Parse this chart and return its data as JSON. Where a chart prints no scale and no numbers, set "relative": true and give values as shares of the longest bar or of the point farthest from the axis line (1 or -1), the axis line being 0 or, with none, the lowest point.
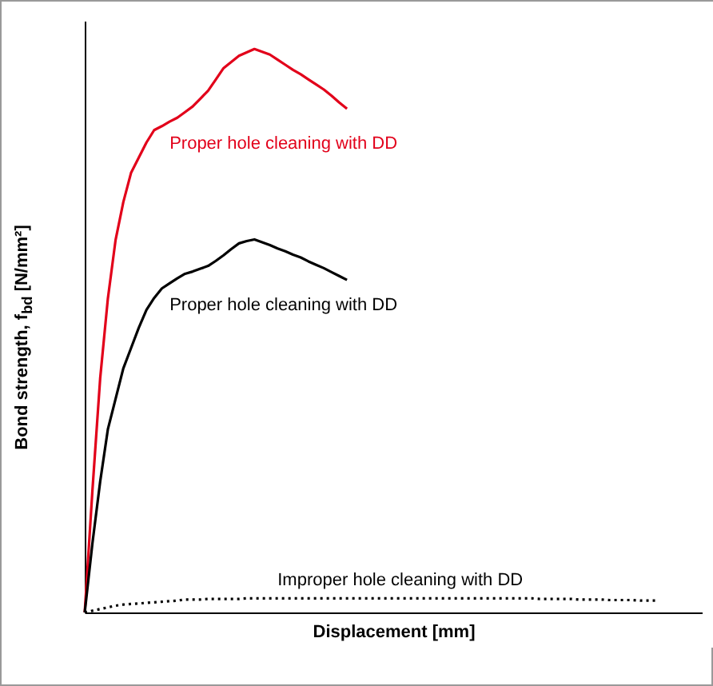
{
  "chart_data": {
    "type": "line",
    "relative": true,
    "xlabel": "Displacement [mm]",
    "ylabel": "Bond strength, f$_{bd}$ [N/mm²]",
    "categories": [
      null,
      null,
      null,
      null,
      null,
      null,
      null,
      null,
      null,
      null,
      null,
      null,
      null,
      null,
      null,
      null,
      null,
      null,
      null,
      null,
      null,
      null,
      null,
      null,
      null,
      null,
      null,
      null,
      null,
      null,
      null,
      null,
      null,
      null,
      null,
      null,
      null,
      null,
      null,
      null,
      null,
      null,
      null,
      null,
      null,
      null,
      null,
      null,
      null,
      null,
      null,
      null,
      null,
      null,
      null,
      null,
      null,
      null,
      null,
      null,
      null,
      null,
      null,
      null,
      null,
      null,
      null,
      null,
      null,
      null,
      null,
      null,
      null,
      null,
      null,
      null,
      null,
      null,
      null,
      null,
      null
    ],
    "series": [
      {
        "name": "Proper hole cleaning with DD",
        "color": "#e2001a",
        "values": [
          0,
          0.217,
          0.415,
          0.557,
          0.661,
          0.728,
          0.78,
          0.807,
          0.834,
          0.856,
          0.863,
          0.871,
          0.878,
          0.888,
          0.898,
          0.912,
          0.926,
          0.946,
          0.966,
          0.977,
          0.988,
          0.994,
          1,
          0.995,
          0.99,
          0.981,
          0.972,
          0.963,
          0.955,
          0.946,
          0.937,
          0.928,
          0.917,
          0.905,
          0.894,
          null,
          null,
          null,
          null,
          null,
          null,
          null,
          null,
          null,
          null,
          null,
          null,
          null,
          null,
          null,
          null,
          null,
          null,
          null,
          null,
          null,
          null,
          null,
          null,
          null,
          null,
          null,
          null,
          null,
          null,
          null,
          null,
          null,
          null,
          null,
          null,
          null,
          null,
          null,
          null,
          null,
          null,
          null,
          null,
          null,
          null
        ]
      },
      {
        "name": "Proper hole cleaning with DD",
        "color": "#000000",
        "values": [
          0,
          0.123,
          0.232,
          0.325,
          0.379,
          0.433,
          0.469,
          0.505,
          0.537,
          0.558,
          0.575,
          0.584,
          0.593,
          0.601,
          0.605,
          0.61,
          0.615,
          0.624,
          0.634,
          0.645,
          0.655,
          0.659,
          0.662,
          0.657,
          0.652,
          0.646,
          0.641,
          0.635,
          0.63,
          0.623,
          0.617,
          0.611,
          0.604,
          0.597,
          0.59,
          null,
          null,
          null,
          null,
          null,
          null,
          null,
          null,
          null,
          null,
          null,
          null,
          null,
          null,
          null,
          null,
          null,
          null,
          null,
          null,
          null,
          null,
          null,
          null,
          null,
          null,
          null,
          null,
          null,
          null,
          null,
          null,
          null,
          null,
          null,
          null,
          null,
          null,
          null,
          null,
          null,
          null,
          null,
          null,
          null,
          null
        ]
      },
      {
        "name": "Improper hole cleaning with DD",
        "color": "#000000",
        "line_style": "dotted",
        "values": [
          0,
          0.003,
          0.006,
          0.009,
          0.012,
          0.014,
          0.015,
          0.016,
          0.017,
          0.018,
          0.019,
          0.02,
          0.021,
          0.023,
          0.023,
          0.023,
          0.024,
          0.024,
          0.024,
          0.024,
          0.024,
          0.025,
          0.025,
          0.025,
          0.025,
          0.025,
          0.025,
          0.025,
          0.025,
          0.025,
          0.025,
          0.025,
          0.025,
          0.025,
          0.025,
          0.025,
          0.025,
          0.025,
          0.025,
          0.025,
          0.025,
          0.025,
          0.025,
          0.025,
          0.025,
          0.025,
          0.025,
          0.025,
          0.025,
          0.025,
          0.025,
          0.025,
          0.025,
          0.025,
          0.025,
          0.025,
          0.025,
          0.025,
          0.025,
          0.024,
          0.024,
          0.024,
          0.024,
          0.024,
          0.023,
          0.023,
          0.023,
          0.023,
          0.022,
          0.022,
          0.022,
          0.022,
          0.021,
          0.021,
          0.021,
          null,
          null,
          null,
          null,
          null,
          null
        ]
      }
    ]
  }
}
